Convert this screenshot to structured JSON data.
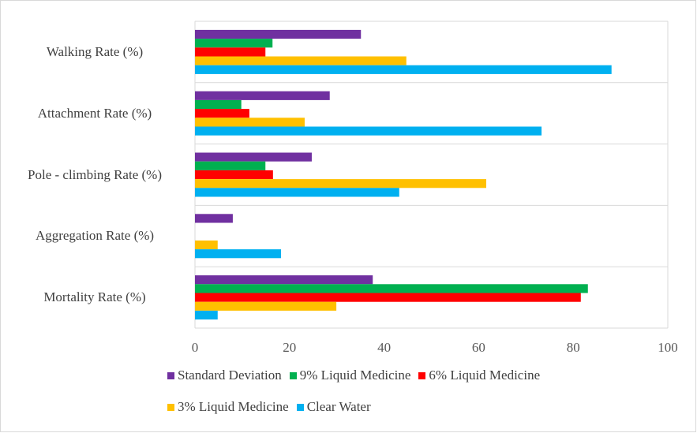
{
  "chart_data": {
    "type": "hbar",
    "categories": [
      "Walking Rate (%)",
      "Attachment Rate (%)",
      "Pole - climbing Rate (%)",
      "Aggregation Rate (%)",
      "Mortality Rate (%)"
    ],
    "series": [
      {
        "name": "Standard Deviation",
        "color": "#7030a0",
        "values": [
          35.1,
          28.5,
          24.7,
          8.0,
          37.6
        ]
      },
      {
        "name": "9% Liquid Medicine",
        "color": "#00b050",
        "values": [
          16.4,
          9.8,
          14.9,
          0,
          83.1
        ]
      },
      {
        "name": "6% Liquid Medicine",
        "color": "#ff0000",
        "values": [
          14.9,
          11.5,
          16.5,
          0,
          81.6
        ]
      },
      {
        "name": "3% Liquid Medicine",
        "color": "#ffc000",
        "values": [
          44.7,
          23.2,
          61.6,
          4.8,
          29.9
        ]
      },
      {
        "name": "Clear Water",
        "color": "#00b0f0",
        "values": [
          88.1,
          73.3,
          43.2,
          18.2,
          4.8
        ]
      }
    ],
    "xlim": [
      0,
      100
    ],
    "xticks": [
      0,
      20,
      40,
      60,
      80,
      100
    ],
    "grid": false,
    "legend": "bottom"
  }
}
